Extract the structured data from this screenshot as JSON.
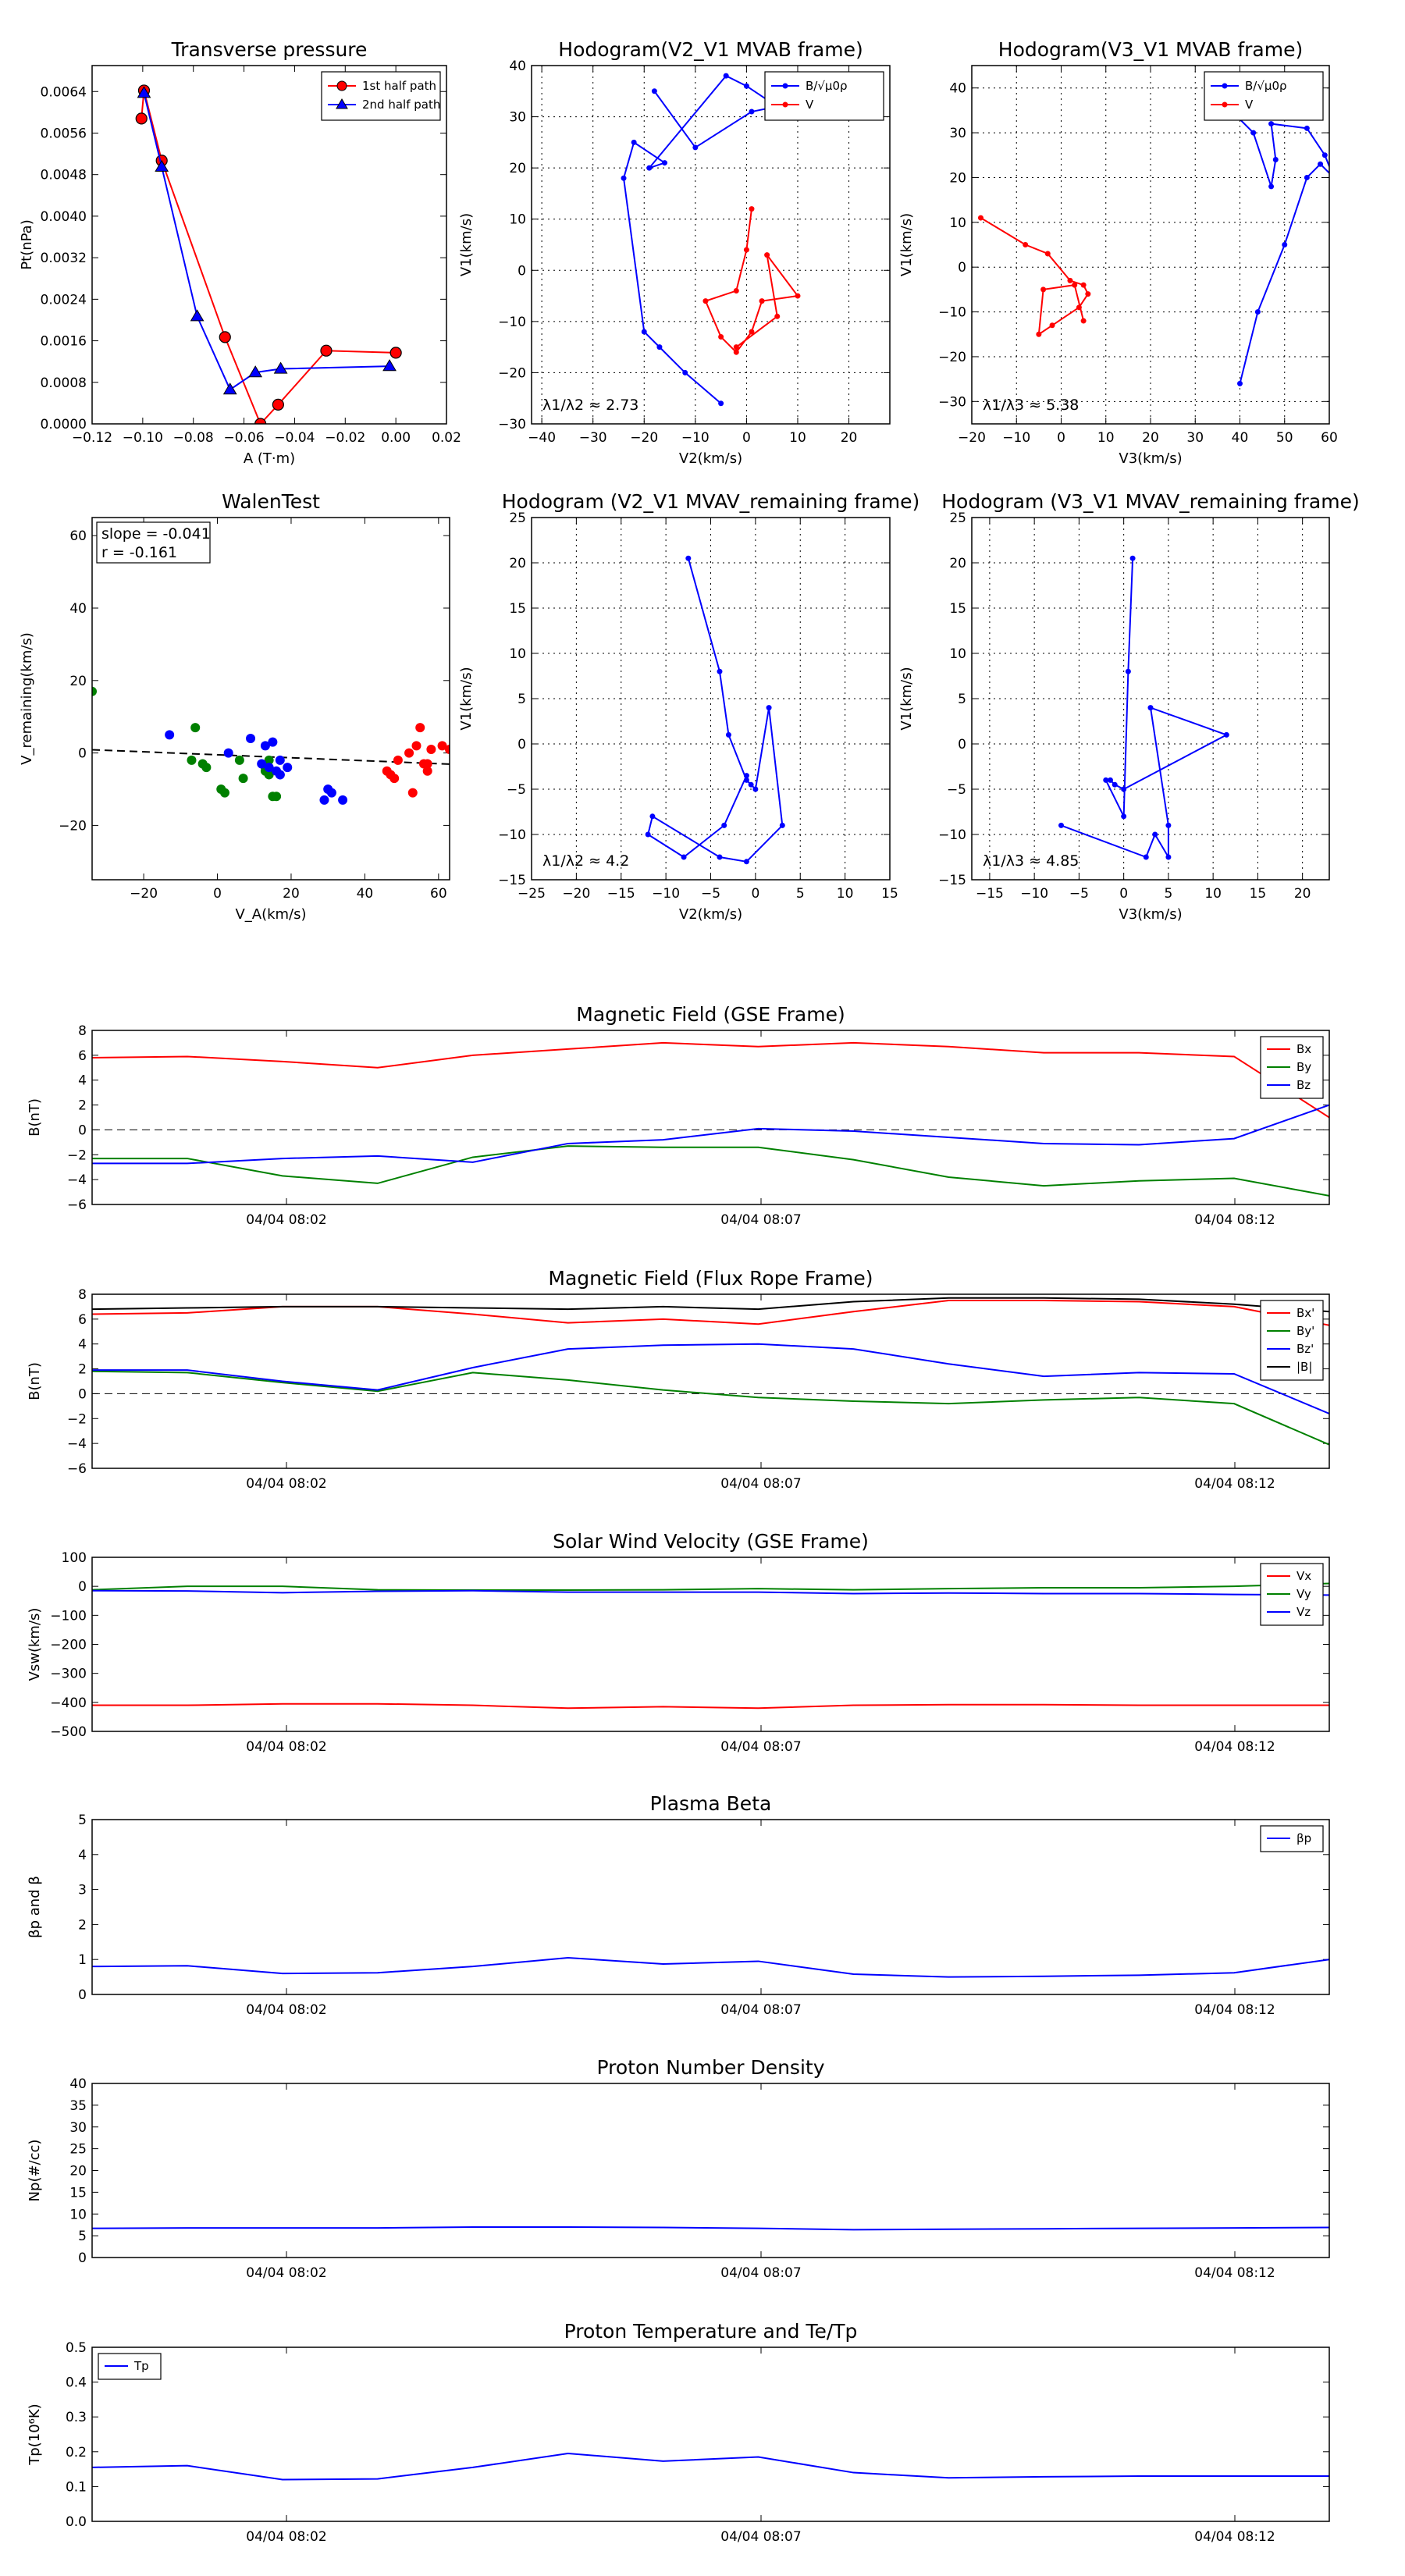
{
  "chart_data": [
    {
      "id": "tp",
      "type": "line",
      "title": "Transverse pressure",
      "xlabel": "A (T·m)",
      "ylabel": "Pt(nPa)",
      "xlim": [
        -0.12,
        0.02
      ],
      "ylim": [
        0,
        0.0069
      ],
      "xticks": [
        -0.12,
        -0.1,
        -0.08,
        -0.06,
        -0.04,
        -0.02,
        0.0,
        0.02
      ],
      "xtick_labels": [
        "−0.12",
        "−0.10",
        "−0.08",
        "−0.06",
        "−0.04",
        "−0.02",
        "0.00",
        "0.02"
      ],
      "yticks": [
        0,
        0.0008,
        0.0016,
        0.0024,
        0.0032,
        0.004,
        0.0048,
        0.0056,
        0.0064
      ],
      "ytick_labels": [
        "0.0000",
        "0.0008",
        "0.0016",
        "0.0024",
        "0.0032",
        "0.0040",
        "0.0048",
        "0.0056",
        "0.0064"
      ],
      "grid": false,
      "legend": "upper right",
      "series": [
        {
          "name": "1st half path",
          "color": "#ff0000",
          "marker": "circle",
          "x": [
            -0.1005,
            -0.0995,
            -0.0925,
            -0.0675,
            -0.0535,
            -0.0465,
            -0.0275,
            0.0
          ],
          "y": [
            0.00588,
            0.00642,
            0.00507,
            0.00167,
            0.0,
            0.00037,
            0.00141,
            0.00137
          ]
        },
        {
          "name": "2nd half path",
          "color": "#0000ff",
          "marker": "triangle",
          "x": [
            -0.0995,
            -0.0925,
            -0.0785,
            -0.0655,
            -0.0555,
            -0.0455,
            -0.0025
          ],
          "y": [
            0.00637,
            0.00495,
            0.00207,
            0.00066,
            0.00099,
            0.00106,
            0.00111
          ]
        }
      ]
    },
    {
      "id": "h1",
      "type": "line",
      "title": "Hodogram(V2_V1 MVAB frame)",
      "xlabel": "V2(km/s)",
      "ylabel": "V1(km/s)",
      "xlim": [
        -42,
        28
      ],
      "ylim": [
        -30,
        40
      ],
      "xticks": [
        -40,
        -30,
        -20,
        -10,
        0,
        10,
        20
      ],
      "xtick_labels": [
        "−40",
        "−30",
        "−20",
        "−10",
        "0",
        "10",
        "20"
      ],
      "yticks": [
        -30,
        -20,
        -10,
        0,
        10,
        20,
        30,
        40
      ],
      "ytick_labels": [
        "−30",
        "−20",
        "−10",
        "0",
        "10",
        "20",
        "30",
        "40"
      ],
      "grid": true,
      "legend": "upper right",
      "annotation": "λ1/λ2 ≈ 2.73",
      "series": [
        {
          "name": "B/√μ0ρ",
          "color": "#0000ff",
          "x": [
            -5,
            -12,
            -17,
            -20,
            -24,
            -22,
            -16,
            -19,
            -4,
            0,
            6,
            1,
            -10,
            -18
          ],
          "y": [
            -26,
            -20,
            -15,
            -12,
            18,
            25,
            21,
            20,
            38,
            36,
            32,
            31,
            24,
            35
          ]
        },
        {
          "name": "V_remaining",
          "color": "#ff0000",
          "x": [
            1,
            0,
            -2,
            -8,
            -5,
            -2,
            1,
            3,
            10,
            4,
            6,
            -2
          ],
          "y": [
            12,
            4,
            -4,
            -6,
            -13,
            -16,
            -12,
            -6,
            -5,
            3,
            -9,
            -15
          ]
        }
      ]
    },
    {
      "id": "h2",
      "type": "line",
      "title": "Hodogram(V3_V1 MVAB frame)",
      "xlabel": "V3(km/s)",
      "ylabel": "V1(km/s)",
      "xlim": [
        -20,
        60
      ],
      "ylim": [
        -35,
        45
      ],
      "xticks": [
        -20,
        -10,
        0,
        10,
        20,
        30,
        40,
        50,
        60
      ],
      "xtick_labels": [
        "−20",
        "−10",
        "0",
        "10",
        "20",
        "30",
        "40",
        "50",
        "60"
      ],
      "yticks": [
        -30,
        -20,
        -10,
        0,
        10,
        20,
        30,
        40
      ],
      "ytick_labels": [
        "−30",
        "−20",
        "−10",
        "0",
        "10",
        "20",
        "30",
        "40"
      ],
      "grid": true,
      "legend": "upper right",
      "annotation": "λ1/λ3 ≈ 5.38",
      "series": [
        {
          "name": "B/√μ0ρ",
          "color": "#0000ff",
          "x": [
            40,
            44,
            50,
            55,
            58,
            61,
            59,
            55,
            47,
            48,
            47,
            43,
            38
          ],
          "y": [
            -26,
            -10,
            5,
            20,
            23,
            20,
            25,
            31,
            32,
            24,
            18,
            30,
            35
          ]
        },
        {
          "name": "V_remaining",
          "color": "#ff0000",
          "x": [
            -18,
            -8,
            -3,
            2,
            5,
            6,
            4,
            -2,
            -5,
            -4,
            3,
            5
          ],
          "y": [
            11,
            5,
            3,
            -3,
            -4,
            -6,
            -9,
            -13,
            -15,
            -5,
            -4,
            -12
          ]
        }
      ]
    },
    {
      "id": "wt",
      "type": "scatter",
      "title": "WalenTest",
      "xlabel": "V_A(km/s)",
      "ylabel": "V_remaining(km/s)",
      "xlim": [
        -34,
        63
      ],
      "ylim": [
        -35,
        65
      ],
      "xticks": [
        -20,
        0,
        20,
        40,
        60
      ],
      "xtick_labels": [
        "−20",
        "0",
        "20",
        "40",
        "60"
      ],
      "yticks": [
        -20,
        0,
        20,
        40,
        60
      ],
      "ytick_labels": [
        "−20",
        "0",
        "20",
        "40",
        "60"
      ],
      "grid": false,
      "annotation_lines": [
        "slope = -0.041",
        "r = -0.161"
      ],
      "fit": {
        "slope": -0.041,
        "intercept": -0.5
      },
      "series": [
        {
          "name": "",
          "color": "#008000",
          "x": [
            -34,
            -6,
            -7,
            -4,
            -3,
            1,
            2,
            7,
            6,
            14,
            13,
            15,
            16,
            14,
            13
          ],
          "y": [
            17,
            7,
            -2,
            -3,
            -4,
            -10,
            -11,
            -7,
            -2,
            -2,
            -5,
            -12,
            -12,
            -6,
            -4
          ]
        },
        {
          "name": "",
          "color": "#0000ff",
          "x": [
            -13,
            3,
            9,
            13,
            15,
            17,
            17,
            19,
            12,
            14,
            16,
            17,
            30,
            31,
            34,
            29
          ],
          "y": [
            5,
            0,
            4,
            2,
            3,
            -2,
            -6,
            -4,
            -3,
            -4,
            -5,
            -6,
            -10,
            -11,
            -13,
            -13
          ]
        },
        {
          "name": "",
          "color": "#ff0000",
          "x": [
            46,
            47,
            49,
            52,
            54,
            55,
            57,
            57,
            58,
            61,
            63,
            56,
            53,
            48
          ],
          "y": [
            -5,
            -6,
            -2,
            0,
            2,
            7,
            -3,
            -5,
            1,
            2,
            1,
            -3,
            -11,
            -7
          ]
        }
      ]
    },
    {
      "id": "h3",
      "type": "line",
      "title": "Hodogram (V2_V1 MVAV_remaining frame)",
      "xlabel": "V2(km/s)",
      "ylabel": "V1(km/s)",
      "xlim": [
        -25,
        15
      ],
      "ylim": [
        -15,
        25
      ],
      "xticks": [
        -25,
        -20,
        -15,
        -10,
        -5,
        0,
        5,
        10,
        15
      ],
      "xtick_labels": [
        "−25",
        "−20",
        "−15",
        "−10",
        "−5",
        "0",
        "5",
        "10",
        "15"
      ],
      "yticks": [
        -15,
        -10,
        -5,
        0,
        5,
        10,
        15,
        20,
        25
      ],
      "ytick_labels": [
        "−15",
        "−10",
        "−5",
        "0",
        "5",
        "10",
        "15",
        "20",
        "25"
      ],
      "grid": true,
      "annotation": "λ1/λ2 ≈ 4.2",
      "series": [
        {
          "name": "",
          "color": "#0000ff",
          "x": [
            -7.5,
            -4,
            -3,
            -1,
            -0.5,
            0,
            1.5,
            3,
            -1,
            -4,
            -11.5,
            -12,
            -8,
            -3.5,
            -1
          ],
          "y": [
            20.5,
            8,
            1,
            -4,
            -4.5,
            -5,
            4,
            -9,
            -13,
            -12.5,
            -8,
            -10,
            -12.5,
            -9,
            -3.5
          ]
        }
      ]
    },
    {
      "id": "h4",
      "type": "line",
      "title": "Hodogram (V3_V1 MVAV_remaining frame)",
      "xlabel": "V3(km/s)",
      "ylabel": "V1(km/s)",
      "xlim": [
        -17,
        23
      ],
      "ylim": [
        -15,
        25
      ],
      "xticks": [
        -15,
        -10,
        -5,
        0,
        5,
        10,
        15,
        20
      ],
      "xtick_labels": [
        "−15",
        "−10",
        "−5",
        "0",
        "5",
        "10",
        "15",
        "20"
      ],
      "yticks": [
        -15,
        -10,
        -5,
        0,
        5,
        10,
        15,
        20,
        25
      ],
      "ytick_labels": [
        "−15",
        "−10",
        "−5",
        "0",
        "5",
        "10",
        "15",
        "20",
        "25"
      ],
      "grid": true,
      "annotation": "λ1/λ3 ≈ 4.85",
      "series": [
        {
          "name": "",
          "color": "#0000ff",
          "x": [
            1,
            0.5,
            0,
            -2,
            -1.5,
            -1,
            0,
            11.5,
            3,
            5,
            5,
            3.5,
            2.5,
            -7
          ],
          "y": [
            20.5,
            8,
            -8,
            -4,
            -4,
            -4.5,
            -5,
            1,
            4,
            -9,
            -12.5,
            -10,
            -12.5,
            -9
          ]
        }
      ]
    },
    {
      "id": "mag",
      "type": "line",
      "title": "Magnetic Field (GSE Frame)",
      "ylabel": "B(nT)",
      "xtick_labels": [
        "04/04 08:02",
        "04/04 08:07",
        "04/04 08:12"
      ],
      "ylim": [
        -6,
        8
      ],
      "yticks": [
        -6,
        -4,
        -2,
        0,
        2,
        4,
        6,
        8
      ],
      "ytick_labels": [
        "−6",
        "−4",
        "−2",
        "0",
        "2",
        "4",
        "6",
        "8"
      ],
      "legend": "upper right",
      "series": [
        {
          "name": "Bx",
          "color": "#ff0000",
          "values": [
            5.8,
            5.9,
            5.5,
            5.0,
            6.0,
            6.5,
            7.0,
            6.7,
            7.0,
            6.7,
            6.2,
            6.2,
            5.9,
            1.0
          ]
        },
        {
          "name": "By",
          "color": "#008000",
          "values": [
            -2.3,
            -2.3,
            -3.7,
            -4.3,
            -2.2,
            -1.3,
            -1.4,
            -1.4,
            -2.4,
            -3.8,
            -4.5,
            -4.1,
            -3.9,
            -5.3
          ]
        },
        {
          "name": "Bz",
          "color": "#0000ff",
          "values": [
            -2.7,
            -2.7,
            -2.3,
            -2.1,
            -2.6,
            -1.1,
            -0.8,
            0.1,
            -0.1,
            -0.6,
            -1.1,
            -1.2,
            -0.7,
            2.0
          ]
        }
      ]
    },
    {
      "id": "fr",
      "type": "line",
      "title": "Magnetic Field (Flux Rope Frame)",
      "ylabel": "B(nT)",
      "xtick_labels": [
        "04/04 08:02",
        "04/04 08:07",
        "04/04 08:12"
      ],
      "ylim": [
        -6,
        8
      ],
      "yticks": [
        -6,
        -4,
        -2,
        0,
        2,
        4,
        6,
        8
      ],
      "ytick_labels": [
        "−6",
        "−4",
        "−2",
        "0",
        "2",
        "4",
        "6",
        "8"
      ],
      "legend": "upper right",
      "series": [
        {
          "name": "Bx'",
          "color": "#ff0000",
          "values": [
            6.4,
            6.5,
            7.0,
            7.0,
            6.4,
            5.7,
            6.0,
            5.6,
            6.6,
            7.5,
            7.5,
            7.4,
            7.0,
            5.5
          ]
        },
        {
          "name": "By'",
          "color": "#008000",
          "values": [
            1.8,
            1.7,
            0.9,
            0.2,
            1.7,
            1.1,
            0.3,
            -0.3,
            -0.6,
            -0.8,
            -0.5,
            -0.3,
            -0.8,
            -4.1
          ]
        },
        {
          "name": "Bz'",
          "color": "#0000ff",
          "values": [
            1.9,
            1.9,
            1.0,
            0.3,
            2.1,
            3.6,
            3.9,
            4.0,
            3.6,
            2.4,
            1.4,
            1.7,
            1.6,
            -1.6
          ]
        },
        {
          "name": "|B|",
          "color": "#000000",
          "values": [
            6.8,
            6.9,
            7.0,
            7.0,
            6.9,
            6.8,
            7.0,
            6.8,
            7.4,
            7.7,
            7.7,
            7.6,
            7.2,
            6.6
          ]
        }
      ]
    },
    {
      "id": "vel",
      "type": "line",
      "title": "Solar Wind Velocity (GSE Frame)",
      "ylabel": "Vsw(km/s)",
      "xtick_labels": [
        "04/04 08:02",
        "04/04 08:07",
        "04/04 08:12"
      ],
      "ylim": [
        -500,
        100
      ],
      "yticks": [
        -500,
        -400,
        -300,
        -200,
        -100,
        0,
        100
      ],
      "ytick_labels": [
        "−500",
        "−400",
        "−300",
        "−200",
        "−100",
        "0",
        "100"
      ],
      "legend": "upper right",
      "series": [
        {
          "name": "Vx",
          "color": "#ff0000",
          "values": [
            -410,
            -410,
            -405,
            -405,
            -410,
            -420,
            -415,
            -420,
            -410,
            -408,
            -408,
            -410,
            -410,
            -410
          ]
        },
        {
          "name": "Vy",
          "color": "#008000",
          "values": [
            -12,
            0,
            0,
            -12,
            -13,
            -13,
            -12,
            -8,
            -12,
            -8,
            -5,
            -5,
            0,
            10
          ]
        },
        {
          "name": "Vz",
          "color": "#0000ff",
          "values": [
            -15,
            -16,
            -22,
            -17,
            -15,
            -20,
            -20,
            -20,
            -25,
            -23,
            -25,
            -25,
            -28,
            -30
          ]
        }
      ]
    },
    {
      "id": "beta",
      "type": "line",
      "title": "Plasma Beta",
      "ylabel": "βp and β",
      "xtick_labels": [
        "04/04 08:02",
        "04/04 08:07",
        "04/04 08:12"
      ],
      "ylim": [
        0,
        5
      ],
      "yticks": [
        0,
        1,
        2,
        3,
        4,
        5
      ],
      "ytick_labels": [
        "0",
        "1",
        "2",
        "3",
        "4",
        "5"
      ],
      "legend": "upper right",
      "series": [
        {
          "name": "βp",
          "color": "#0000ff",
          "values": [
            0.8,
            0.82,
            0.6,
            0.62,
            0.8,
            1.05,
            0.87,
            0.95,
            0.58,
            0.5,
            0.52,
            0.55,
            0.62,
            1.0
          ]
        }
      ]
    },
    {
      "id": "np",
      "type": "line",
      "title": "Proton Number Density",
      "ylabel": "Np(#/cc)",
      "xtick_labels": [
        "04/04 08:02",
        "04/04 08:07",
        "04/04 08:12"
      ],
      "ylim": [
        0,
        40
      ],
      "yticks": [
        0,
        5,
        10,
        15,
        20,
        25,
        30,
        35,
        40
      ],
      "ytick_labels": [
        "0",
        "5",
        "10",
        "15",
        "20",
        "25",
        "30",
        "35",
        "40"
      ],
      "series": [
        {
          "name": "",
          "color": "#0000ff",
          "values": [
            6.7,
            6.8,
            6.8,
            6.8,
            7.0,
            7.0,
            6.9,
            6.7,
            6.4,
            6.5,
            6.6,
            6.7,
            6.8,
            6.9
          ]
        }
      ]
    },
    {
      "id": "tpt",
      "type": "line",
      "title": "Proton Temperature and Te/Tp",
      "ylabel": "Tp(10⁶K)",
      "xtick_labels": [
        "04/04 08:02",
        "04/04 08:07",
        "04/04 08:12"
      ],
      "ylim": [
        0,
        0.5
      ],
      "yticks": [
        0,
        0.1,
        0.2,
        0.3,
        0.4,
        0.5
      ],
      "ytick_labels": [
        "0.0",
        "0.1",
        "0.2",
        "0.3",
        "0.4",
        "0.5"
      ],
      "legend": "upper left",
      "series": [
        {
          "name": "Tp",
          "color": "#0000ff",
          "values": [
            0.155,
            0.16,
            0.12,
            0.122,
            0.155,
            0.195,
            0.173,
            0.185,
            0.14,
            0.125,
            0.128,
            0.13,
            0.13,
            0.13
          ]
        }
      ]
    }
  ]
}
